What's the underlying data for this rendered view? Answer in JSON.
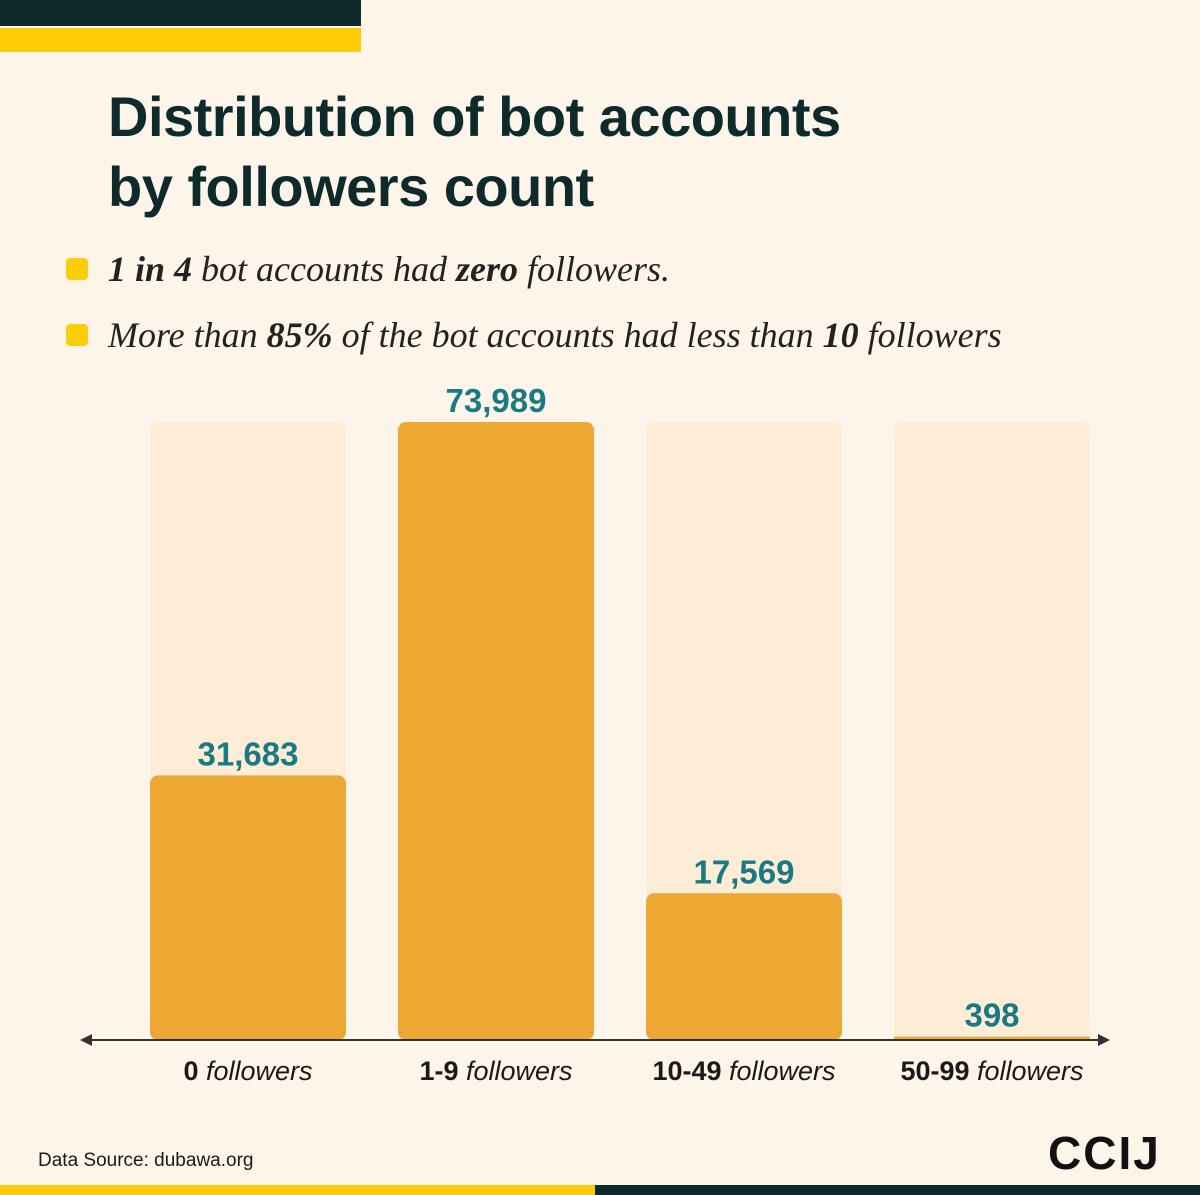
{
  "title": {
    "line1": "Distribution of bot accounts",
    "line2": "by followers count"
  },
  "bullets": [
    {
      "strong1": "1 in 4",
      "text1": " bot accounts had ",
      "strong2": "zero",
      "text2": " followers."
    },
    {
      "text0": "More than ",
      "strong1": "85%",
      "text1": " of the bot accounts had less than ",
      "strong2": "10",
      "text2": " followers"
    }
  ],
  "chart_data": {
    "type": "bar",
    "categories": [
      {
        "num": "0",
        "word": "followers"
      },
      {
        "num": "1-9",
        "word": "followers"
      },
      {
        "num": "10-49",
        "word": "followers"
      },
      {
        "num": "50-99",
        "word": "followers"
      }
    ],
    "values": [
      31683,
      73989,
      17569,
      398
    ],
    "labels": [
      "31,683",
      "73,989",
      "17,569",
      "398"
    ],
    "ylim": [
      0,
      73989
    ],
    "bar_color": "#eea935",
    "track_color": "#fdecd6",
    "label_color": "#1a7a83"
  },
  "footer": {
    "source": "Data Source: dubawa.org",
    "logo": "CCIJ"
  },
  "colors": {
    "dark": "#0e2a2b",
    "yellow": "#fccc07",
    "background": "#fdf4ea"
  }
}
